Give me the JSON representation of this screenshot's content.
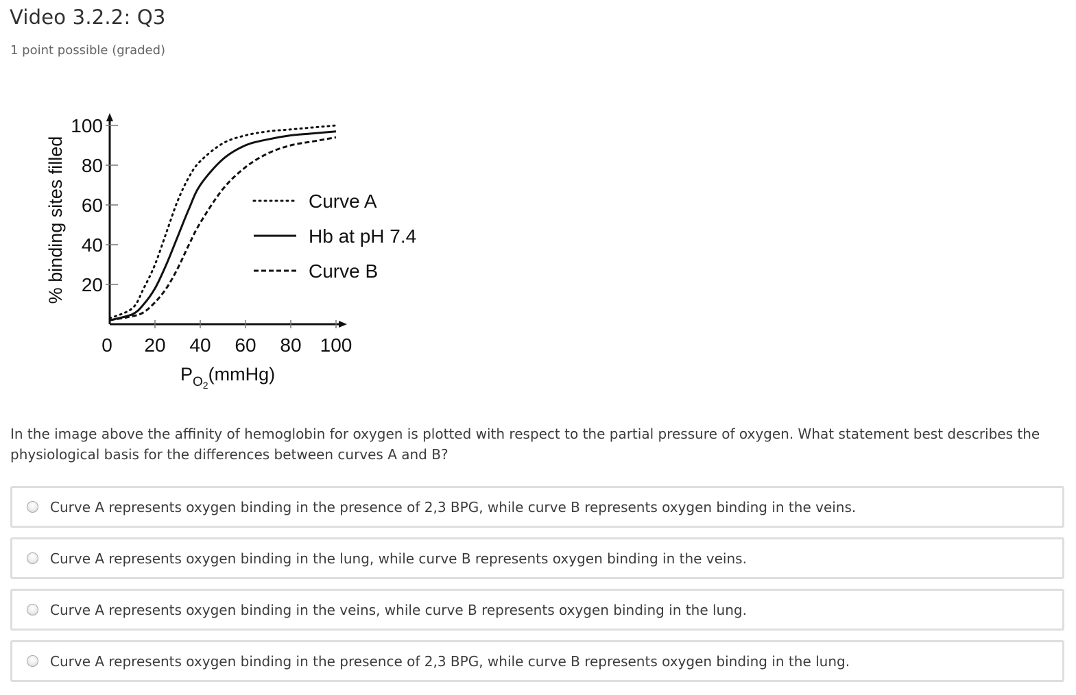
{
  "problem": {
    "title": "Video 3.2.2: Q3",
    "progress": "1 point possible (graded)"
  },
  "question": {
    "text": "In the image above the affinity of hemoglobin for oxygen is plotted with respect to the partial pressure of oxygen. What statement best describes the physiological basis for the differences between curves A and B?"
  },
  "choices": [
    {
      "label": "Curve A represents oxygen binding in the presence of 2,3 BPG, while curve B represents oxygen binding in the veins."
    },
    {
      "label": "Curve A represents oxygen binding in the lung, while curve B represents oxygen binding in the veins."
    },
    {
      "label": "Curve A represents oxygen binding in the veins, while curve B represents oxygen binding in the lung."
    },
    {
      "label": "Curve A represents oxygen binding in the presence of 2,3 BPG, while curve B represents oxygen binding in the lung."
    }
  ],
  "chart_data": {
    "type": "line",
    "title": "",
    "xlabel": "P",
    "xlabel_subscript": "O",
    "xlabel_subsubscript": "2",
    "xlabel_unit": "(mmHg)",
    "ylabel": "% binding sites filled",
    "xlim": [
      0,
      100
    ],
    "ylim": [
      0,
      100
    ],
    "x_ticks": [
      "0",
      "20",
      "40",
      "60",
      "80",
      "100"
    ],
    "y_ticks": [
      "20",
      "40",
      "60",
      "80",
      "100"
    ],
    "grid": false,
    "legend_position": "right",
    "series": [
      {
        "name": "Curve A",
        "style": "dotted",
        "points": [
          [
            0,
            3
          ],
          [
            10,
            8
          ],
          [
            15,
            18
          ],
          [
            20,
            30
          ],
          [
            25,
            46
          ],
          [
            30,
            62
          ],
          [
            35,
            74
          ],
          [
            40,
            82
          ],
          [
            50,
            91
          ],
          [
            60,
            95
          ],
          [
            70,
            97
          ],
          [
            80,
            98
          ],
          [
            90,
            99
          ],
          [
            100,
            100
          ]
        ]
      },
      {
        "name": "Hb at pH 7.4",
        "style": "solid",
        "points": [
          [
            0,
            2
          ],
          [
            10,
            5
          ],
          [
            15,
            10
          ],
          [
            20,
            18
          ],
          [
            25,
            30
          ],
          [
            30,
            44
          ],
          [
            35,
            58
          ],
          [
            40,
            70
          ],
          [
            50,
            83
          ],
          [
            60,
            90
          ],
          [
            70,
            93
          ],
          [
            80,
            95
          ],
          [
            90,
            96
          ],
          [
            100,
            97
          ]
        ]
      },
      {
        "name": "Curve B",
        "style": "dashed",
        "points": [
          [
            0,
            2
          ],
          [
            10,
            4
          ],
          [
            15,
            6
          ],
          [
            20,
            11
          ],
          [
            25,
            18
          ],
          [
            30,
            28
          ],
          [
            35,
            40
          ],
          [
            40,
            51
          ],
          [
            50,
            68
          ],
          [
            60,
            79
          ],
          [
            70,
            86
          ],
          [
            80,
            90
          ],
          [
            90,
            92
          ],
          [
            100,
            94
          ]
        ]
      }
    ]
  }
}
